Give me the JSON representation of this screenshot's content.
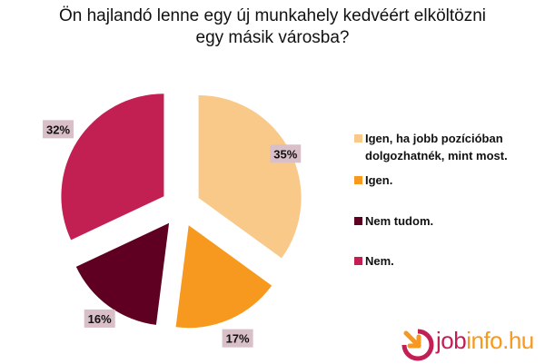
{
  "chart_data": {
    "type": "pie",
    "title": "Ön hajlandó lenne egy új munkahely kedvéért elköltözni egy másik városba?",
    "title_lines": [
      "Ön hajlandó lenne egy új munkahely kedvéért elköltözni",
      "egy másik városba?"
    ],
    "slices": [
      {
        "label": "Igen, ha jobb pozícióban dolgozhatnék, mint most.",
        "label_lines": [
          "Igen, ha jobb pozícióban",
          "dolgozhatnék, mint most."
        ],
        "value": 35,
        "data_label": "35%",
        "color": "#f9c98a"
      },
      {
        "label": "Igen.",
        "value": 17,
        "data_label": "17%",
        "color": "#f7991e"
      },
      {
        "label": "Nem tudom.",
        "value": 16,
        "data_label": "16%",
        "color": "#5f0022"
      },
      {
        "label": "Nem.",
        "value": 32,
        "data_label": "32%",
        "color": "#c21f53"
      }
    ],
    "exploded": true,
    "start": "top, clockwise",
    "legend_position": "right",
    "data_label_background": "#d9bfc8"
  },
  "logo": {
    "text_a": "job",
    "text_b": "info.hu",
    "color_a": "#c21f53",
    "color_b": "#f7991e"
  }
}
